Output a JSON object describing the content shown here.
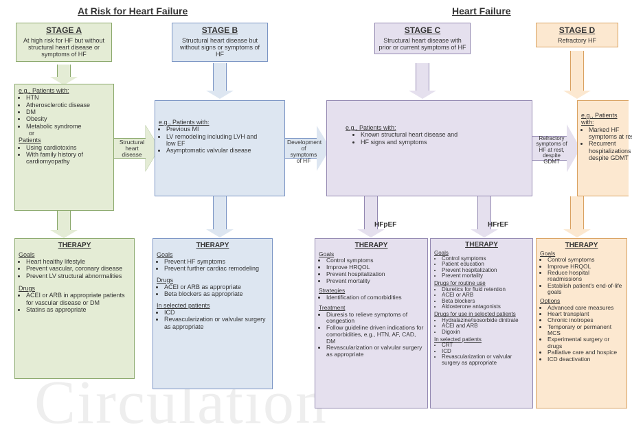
{
  "headers": {
    "left": "At Risk for Heart Failure",
    "right": "Heart Failure"
  },
  "colors": {
    "stageA_bg": "#e4ecd5",
    "stageA_border": "#8aa86b",
    "stageB_bg": "#dde6f1",
    "stageB_border": "#7a94c4",
    "stageC_bg": "#e5e0ee",
    "stageC_border": "#9388b1",
    "stageD_bg": "#fce8d0",
    "stageD_border": "#d9a160"
  },
  "stages": {
    "A": {
      "title": "STAGE A",
      "desc": "At high risk for HF but without structural heart disease or symptoms of HF"
    },
    "B": {
      "title": "STAGE B",
      "desc": "Structural heart disease but without signs or symptoms of HF"
    },
    "C": {
      "title": "STAGE C",
      "desc": "Structural heart disease with prior or current symptoms of HF"
    },
    "D": {
      "title": "STAGE D",
      "desc": "Refractory HF"
    }
  },
  "patients": {
    "A_label": "e.g., Patients with:",
    "A_items": [
      "HTN",
      "Atherosclerotic disease",
      "DM",
      "Obesity",
      "Metabolic syndrome"
    ],
    "A_or": "      or",
    "A_label2": "Patients",
    "A_items2": [
      "Using cardiotoxins",
      "With family history of cardiomyopathy"
    ],
    "B_label": "e.g., Patients with:",
    "B_items": [
      "Previous MI",
      "LV remodeling including LVH and low EF",
      "Asymptomatic valvular disease"
    ],
    "C_label": "e.g., Patients with:",
    "C_items": [
      "Known structural heart disease and",
      "HF signs and symptoms"
    ],
    "D_label": "e.g., Patients with:",
    "D_items": [
      "Marked HF symptoms at rest",
      "Recurrent hospitalizations despite GDMT"
    ]
  },
  "transitions": {
    "AtoB": "Structural heart disease",
    "BtoC": "Development of symptoms of HF",
    "CtoD": "Refractory symptoms of HF at rest, despite GDMT",
    "C_left": "HFpEF",
    "C_right": "HFrEF"
  },
  "therapy": {
    "title": "THERAPY",
    "A": {
      "goals_label": "Goals",
      "goals": [
        "Heart healthy lifestyle",
        "Prevent vascular, coronary disease",
        "Prevent LV structural abnormalities"
      ],
      "drugs_label": "Drugs",
      "drugs": [
        "ACEI or ARB in appropriate patients for vascular disease or DM",
        "Statins as appropriate"
      ]
    },
    "B": {
      "goals_label": "Goals",
      "goals": [
        "Prevent HF symptoms",
        "Prevent further cardiac remodeling"
      ],
      "drugs_label": "Drugs",
      "drugs": [
        "ACEI or ARB  as appropriate",
        "Beta blockers as appropriate"
      ],
      "sel_label": "In selected patients",
      "sel": [
        "ICD",
        "Revascularization or valvular surgery as appropriate"
      ]
    },
    "C_left": {
      "goals_label": "Goals",
      "goals": [
        "Control symptoms",
        "Improve HRQOL",
        "Prevent hospitalization",
        "Prevent mortality"
      ],
      "strat_label": "Strategies",
      "strat": [
        "Identification of comorbidities"
      ],
      "treat_label": "Treatment",
      "treat": [
        "Diuresis to relieve symptoms of congestion",
        "Follow guideline driven indications for comorbidities, e.g., HTN, AF, CAD, DM",
        "Revascularization or valvular surgery as appropriate"
      ]
    },
    "C_right": {
      "goals_label": "Goals",
      "goals": [
        "Control symptoms",
        "Patient education",
        "Prevent hospitalization",
        "Prevent mortality"
      ],
      "dr_label": "Drugs for routine use",
      "dr": [
        "Diuretics for fluid retention",
        "ACEI or ARB",
        "Beta blockers",
        "Aldosterone antagonists"
      ],
      "ds_label": "Drugs for use in selected patients",
      "ds": [
        "Hydralazine/isosorbide dinitrate",
        "ACEI and ARB",
        "Digoxin"
      ],
      "sel_label": "In selected patients",
      "sel": [
        "CRT",
        "ICD",
        "Revascularization or valvular surgery as appropriate"
      ]
    },
    "D": {
      "goals_label": "Goals",
      "goals": [
        "Control symptoms",
        "Improve HRQOL",
        "Reduce hospital readmissions",
        "Establish patient's end-of-life goals"
      ],
      "opt_label": "Options",
      "opt": [
        "Advanced care measures",
        "Heart transplant",
        "Chronic inotropes",
        "Temporary or permanent MCS",
        "Experimental surgery or drugs",
        "Palliative care and hospice",
        "ICD deactivation"
      ]
    }
  }
}
